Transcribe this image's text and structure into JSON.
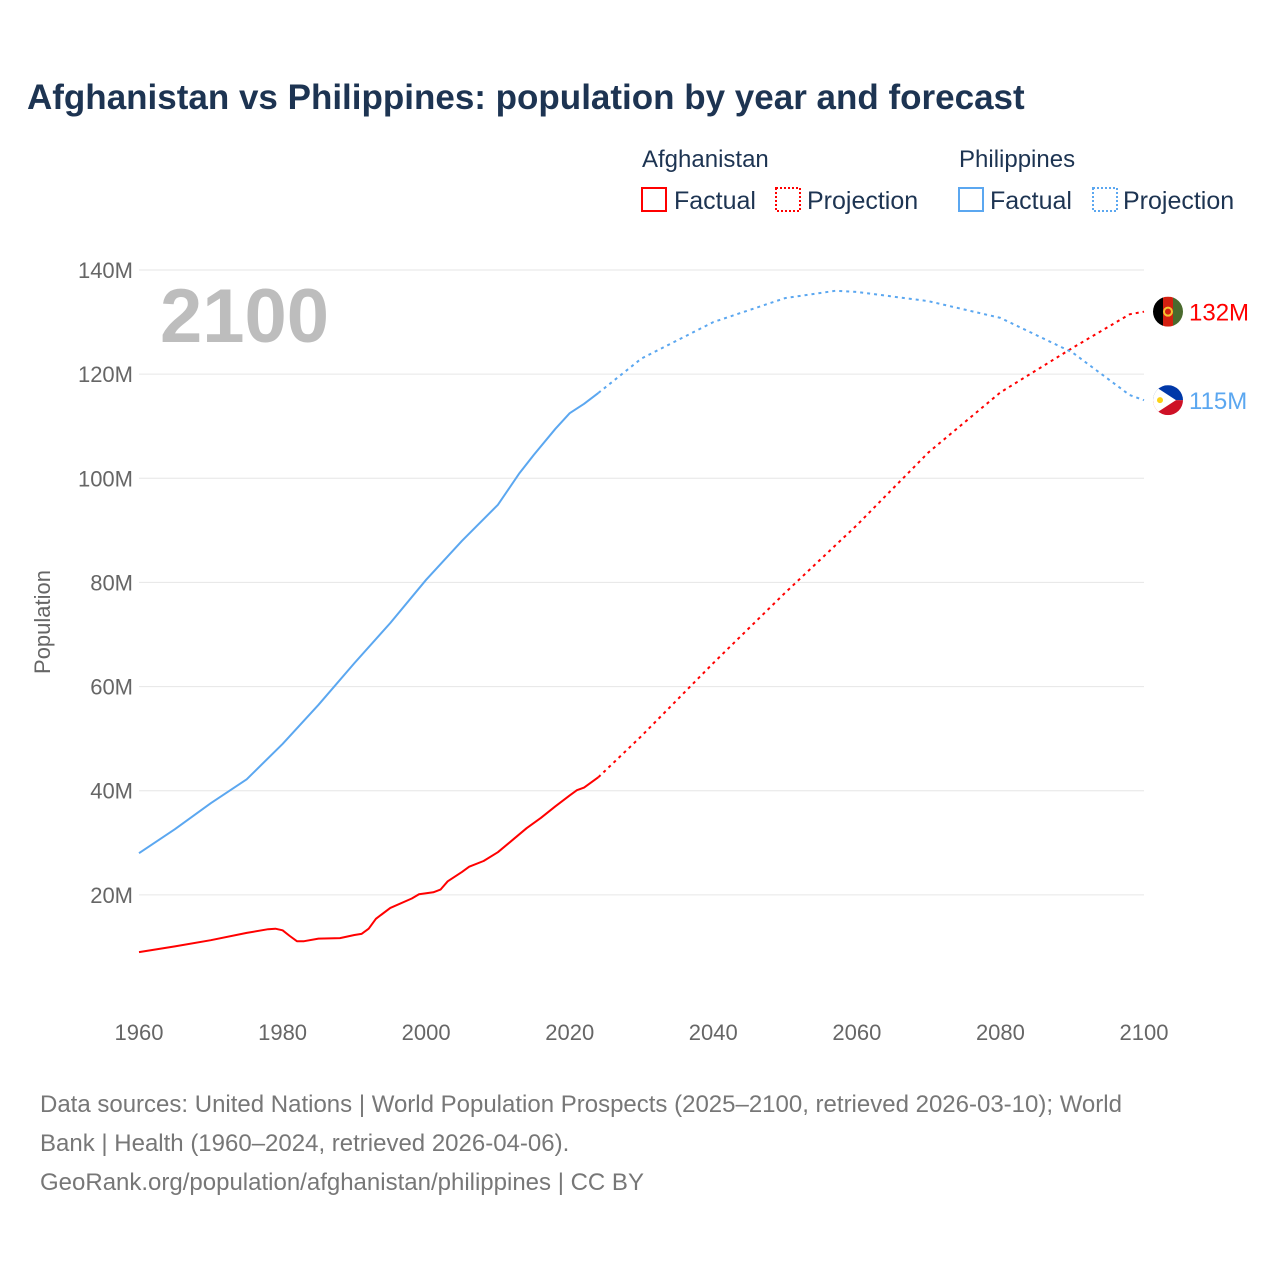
{
  "chart_data": {
    "type": "line",
    "title": "Afghanistan vs Philippines: population by year and forecast",
    "ylabel": "Population",
    "xlabel": "",
    "xlim": [
      1960,
      2100
    ],
    "ylim": [
      0,
      140
    ],
    "y_unit": "M",
    "grid": true,
    "year_watermark": "2100",
    "x_ticks": [
      "1960",
      "1980",
      "2000",
      "2020",
      "2040",
      "2060",
      "2080",
      "2100"
    ],
    "y_ticks": [
      "20M",
      "40M",
      "60M",
      "80M",
      "100M",
      "120M",
      "140M"
    ],
    "legend": {
      "placement": "top-right",
      "groups": [
        {
          "name": "Afghanistan",
          "factual": "Factual",
          "projection": "Projection",
          "color": "#ff0000"
        },
        {
          "name": "Philippines",
          "factual": "Factual",
          "projection": "Projection",
          "color": "#5ba7f0"
        }
      ]
    },
    "series": [
      {
        "name": "Afghanistan",
        "kind": "factual",
        "color": "#ff0000",
        "x": [
          1960,
          1965,
          1970,
          1975,
          1978,
          1979,
          1980,
          1981,
          1982,
          1983,
          1985,
          1988,
          1990,
          1991,
          1992,
          1993,
          1995,
          1998,
          1999,
          2001,
          2002,
          2003,
          2005,
          2006,
          2008,
          2010,
          2012,
          2014,
          2016,
          2018,
          2020,
          2021,
          2022,
          2024
        ],
        "y": [
          9.0,
          10.1,
          11.3,
          12.7,
          13.4,
          13.5,
          13.2,
          12.1,
          11.1,
          11.1,
          11.6,
          11.7,
          12.3,
          12.5,
          13.5,
          15.4,
          17.5,
          19.3,
          20.1,
          20.5,
          21.0,
          22.6,
          24.4,
          25.4,
          26.5,
          28.2,
          30.5,
          32.8,
          34.8,
          37.0,
          39.1,
          40.1,
          40.6,
          42.6
        ]
      },
      {
        "name": "Afghanistan",
        "kind": "projection",
        "color": "#ff0000",
        "x": [
          2024,
          2030,
          2040,
          2050,
          2060,
          2070,
          2080,
          2090,
          2098,
          2100
        ],
        "y": [
          42.6,
          50.5,
          64.5,
          78.0,
          91.0,
          105.0,
          116.5,
          125.0,
          131.5,
          132.0
        ]
      },
      {
        "name": "Philippines",
        "kind": "factual",
        "color": "#5ba7f0",
        "x": [
          1960,
          1965,
          1970,
          1975,
          1980,
          1985,
          1990,
          1995,
          2000,
          2005,
          2010,
          2013,
          2015,
          2018,
          2020,
          2022,
          2024
        ],
        "y": [
          28.0,
          32.6,
          37.6,
          42.2,
          49.0,
          56.5,
          64.5,
          72.2,
          80.5,
          88.0,
          94.9,
          101.0,
          104.5,
          109.5,
          112.5,
          114.3,
          116.4
        ]
      },
      {
        "name": "Philippines",
        "kind": "projection",
        "color": "#5ba7f0",
        "x": [
          2024,
          2030,
          2040,
          2050,
          2057,
          2060,
          2070,
          2080,
          2090,
          2098,
          2100
        ],
        "y": [
          116.4,
          123.0,
          130.0,
          134.6,
          136.0,
          135.8,
          134.0,
          130.8,
          124.2,
          116.0,
          115.0
        ]
      }
    ],
    "end_labels": [
      {
        "country": "Afghanistan",
        "value": 132,
        "label": "132M",
        "color": "#ff0000",
        "flag": "afghanistan-flag"
      },
      {
        "country": "Philippines",
        "value": 115,
        "label": "115M",
        "color": "#5ba7f0",
        "flag": "philippines-flag"
      }
    ]
  },
  "footer": {
    "line1": "Data sources: United Nations | World Population Prospects (2025–2100, retrieved 2026-03-10); World",
    "line2": "Bank | Health (1960–2024, retrieved 2026-04-06).",
    "line3": "GeoRank.org/population/afghanistan/philippines | CC BY"
  }
}
